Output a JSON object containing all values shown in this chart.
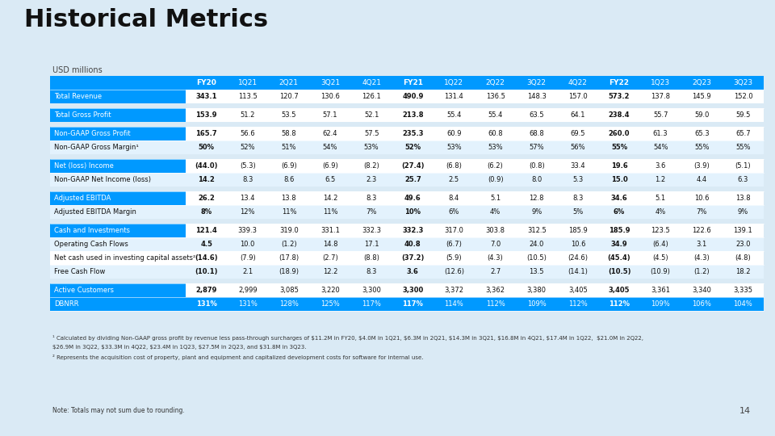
{
  "title": "Historical Metrics",
  "subtitle": "USD millions",
  "bg_color": "#daeaf5",
  "header_bg": "#0099ff",
  "blue_label_bg": "#0099ff",
  "white_bg": "#ffffff",
  "alt_bg": "#e3f2fd",
  "blue_row_bg": "#0099ff",
  "columns": [
    "FY20",
    "1Q21",
    "2Q21",
    "3Q21",
    "4Q21",
    "FY21",
    "1Q22",
    "2Q22",
    "3Q22",
    "4Q22",
    "FY22",
    "1Q23",
    "2Q23",
    "3Q23"
  ],
  "rows": [
    {
      "label": "Total Revenue",
      "style": "blue",
      "bg": "white",
      "vals": [
        "343.1",
        "113.5",
        "120.7",
        "130.6",
        "126.1",
        "490.9",
        "131.4",
        "136.5",
        "148.3",
        "157.0",
        "573.2",
        "137.8",
        "145.9",
        "152.0"
      ]
    },
    {
      "label": "",
      "style": "spacer",
      "bg": "spacer",
      "vals": []
    },
    {
      "label": "Total Gross Profit",
      "style": "blue",
      "bg": "white",
      "vals": [
        "153.9",
        "51.2",
        "53.5",
        "57.1",
        "52.1",
        "213.8",
        "55.4",
        "55.4",
        "63.5",
        "64.1",
        "238.4",
        "55.7",
        "59.0",
        "59.5"
      ]
    },
    {
      "label": "",
      "style": "spacer",
      "bg": "spacer",
      "vals": []
    },
    {
      "label": "Non-GAAP Gross Profit",
      "style": "blue",
      "bg": "white",
      "vals": [
        "165.7",
        "56.6",
        "58.8",
        "62.4",
        "57.5",
        "235.3",
        "60.9",
        "60.8",
        "68.8",
        "69.5",
        "260.0",
        "61.3",
        "65.3",
        "65.7"
      ]
    },
    {
      "label": "Non-GAAP Gross Margin¹",
      "style": "dark",
      "bg": "alt",
      "vals": [
        "50%",
        "52%",
        "51%",
        "54%",
        "53%",
        "52%",
        "53%",
        "53%",
        "57%",
        "56%",
        "55%",
        "54%",
        "55%",
        "55%"
      ]
    },
    {
      "label": "",
      "style": "spacer",
      "bg": "spacer",
      "vals": []
    },
    {
      "label": "Net (loss) Income",
      "style": "blue",
      "bg": "white",
      "vals": [
        "(44.0)",
        "(5.3)",
        "(6.9)",
        "(6.9)",
        "(8.2)",
        "(27.4)",
        "(6.8)",
        "(6.2)",
        "(0.8)",
        "33.4",
        "19.6",
        "3.6",
        "(3.9)",
        "(5.1)"
      ]
    },
    {
      "label": "Non-GAAP Net Income (loss)",
      "style": "dark",
      "bg": "alt",
      "vals": [
        "14.2",
        "8.3",
        "8.6",
        "6.5",
        "2.3",
        "25.7",
        "2.5",
        "(0.9)",
        "8.0",
        "5.3",
        "15.0",
        "1.2",
        "4.4",
        "6.3"
      ]
    },
    {
      "label": "",
      "style": "spacer",
      "bg": "spacer",
      "vals": []
    },
    {
      "label": "Adjusted EBITDA",
      "style": "blue",
      "bg": "white",
      "vals": [
        "26.2",
        "13.4",
        "13.8",
        "14.2",
        "8.3",
        "49.6",
        "8.4",
        "5.1",
        "12.8",
        "8.3",
        "34.6",
        "5.1",
        "10.6",
        "13.8"
      ]
    },
    {
      "label": "Adjusted EBITDA Margin",
      "style": "dark",
      "bg": "alt",
      "vals": [
        "8%",
        "12%",
        "11%",
        "11%",
        "7%",
        "10%",
        "6%",
        "4%",
        "9%",
        "5%",
        "6%",
        "4%",
        "7%",
        "9%"
      ]
    },
    {
      "label": "",
      "style": "spacer",
      "bg": "spacer",
      "vals": []
    },
    {
      "label": "Cash and Investments",
      "style": "blue",
      "bg": "white",
      "vals": [
        "121.4",
        "339.3",
        "319.0",
        "331.1",
        "332.3",
        "332.3",
        "317.0",
        "303.8",
        "312.5",
        "185.9",
        "185.9",
        "123.5",
        "122.6",
        "139.1"
      ]
    },
    {
      "label": "Operating Cash Flows",
      "style": "dark",
      "bg": "alt",
      "vals": [
        "4.5",
        "10.0",
        "(1.2)",
        "14.8",
        "17.1",
        "40.8",
        "(6.7)",
        "7.0",
        "24.0",
        "10.6",
        "34.9",
        "(6.4)",
        "3.1",
        "23.0"
      ]
    },
    {
      "label": "Net cash used in investing capital assets²",
      "style": "dark",
      "bg": "white",
      "vals": [
        "(14.6)",
        "(7.9)",
        "(17.8)",
        "(2.7)",
        "(8.8)",
        "(37.2)",
        "(5.9)",
        "(4.3)",
        "(10.5)",
        "(24.6)",
        "(45.4)",
        "(4.5)",
        "(4.3)",
        "(4.8)"
      ]
    },
    {
      "label": "Free Cash Flow",
      "style": "dark",
      "bg": "alt",
      "vals": [
        "(10.1)",
        "2.1",
        "(18.9)",
        "12.2",
        "8.3",
        "3.6",
        "(12.6)",
        "2.7",
        "13.5",
        "(14.1)",
        "(10.5)",
        "(10.9)",
        "(1.2)",
        "18.2"
      ]
    },
    {
      "label": "",
      "style": "spacer",
      "bg": "spacer",
      "vals": []
    },
    {
      "label": "Active Customers",
      "style": "blue",
      "bg": "white",
      "vals": [
        "2,879",
        "2,999",
        "3,085",
        "3,220",
        "3,300",
        "3,300",
        "3,372",
        "3,362",
        "3,380",
        "3,405",
        "3,405",
        "3,361",
        "3,340",
        "3,335"
      ]
    },
    {
      "label": "DBNRR",
      "style": "blue",
      "bg": "blue_row",
      "vals": [
        "131%",
        "131%",
        "128%",
        "125%",
        "117%",
        "117%",
        "114%",
        "112%",
        "109%",
        "112%",
        "112%",
        "109%",
        "106%",
        "104%"
      ]
    }
  ],
  "footnote1": "¹ Calculated by dividing Non-GAAP gross profit by revenue less pass-through surcharges of $11.2M in FY20, $4.0M in 1Q21, $6.3M in 2Q21, $14.3M in 3Q21, $16.8M in 4Q21, $17.4M in 1Q22,  $21.0M in 2Q22,",
  "footnote1b": "$26.9M in 3Q22, $33.3M in 4Q22, $23.4M in 1Q23, $27.5M in 2Q23, and $31.8M in 3Q23.",
  "footnote2": "² Represents the acquisition cost of property, plant and equipment and capitalized development costs for software for internal use.",
  "note": "Note: Totals may not sum due to rounding.",
  "page_num": "14"
}
